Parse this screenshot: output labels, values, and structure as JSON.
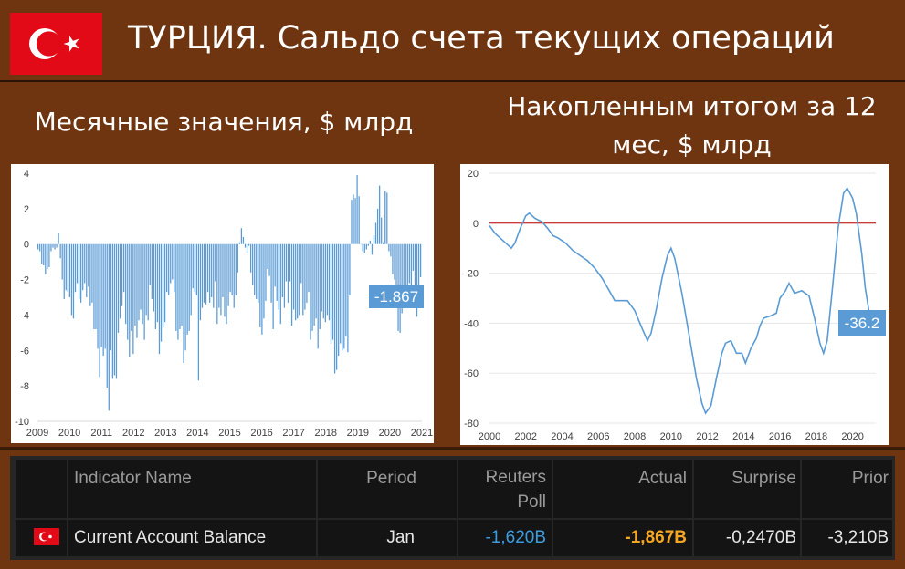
{
  "header": {
    "title": "ТУРЦИЯ. Сальдо счета текущих операций",
    "flag_icon": "turkey-flag-icon",
    "flag_color": "#e30a17"
  },
  "subtitles": {
    "left": "Месячные значения, $ млрд",
    "right_line1": "Накопленным итогом за 12",
    "right_line2": "мес, $ млрд"
  },
  "chart_data": [
    {
      "type": "bar",
      "ylim": [
        -10,
        4
      ],
      "y_ticks": [
        "4",
        "2",
        "0",
        "-2",
        "-4",
        "-6",
        "-8",
        "-10"
      ],
      "x_tick_labels": [
        "2009",
        "2010",
        "2011",
        "2012",
        "2013",
        "2014",
        "2015",
        "2016",
        "2017",
        "2018",
        "2019",
        "2020",
        "2021"
      ],
      "x_start": 2009,
      "x_end": 2021,
      "bar_color": "#5b9bd5",
      "annotation": "-1.867",
      "values": [
        -0.3,
        -0.4,
        -1.1,
        -1.2,
        -1.7,
        -1.4,
        -1.3,
        -0.4,
        -0.2,
        -0.3,
        -0.2,
        0.6,
        -0.8,
        -2.0,
        -3.1,
        -2.6,
        -2.7,
        -3.0,
        -4.0,
        -4.2,
        -2.7,
        -2.2,
        -3.1,
        -3.3,
        -2.6,
        -2.2,
        -3.0,
        -2.4,
        -3.5,
        -3.3,
        -4.8,
        -4.8,
        -5.9,
        -7.5,
        -5.8,
        -6.3,
        -5.9,
        -8.1,
        -9.4,
        -6.0,
        -7.6,
        -7.4,
        -7.6,
        -5.0,
        -4.2,
        -3.5,
        -2.7,
        -4.5,
        -5.4,
        -6.4,
        -4.9,
        -6.2,
        -4.6,
        -5.3,
        -4.3,
        -3.7,
        -4.5,
        -5.4,
        -4.0,
        -4.3,
        -2.3,
        -3.1,
        -3.8,
        -4.8,
        -4.4,
        -6.2,
        -5.5,
        -4.7,
        -4.4,
        -2.7,
        -2.9,
        -2.2,
        -2.0,
        -2.7,
        -4.9,
        -5.4,
        -4.8,
        -4.6,
        -6.7,
        -6.0,
        -5.1,
        -4.9,
        -4.0,
        -2.5,
        -2.7,
        -2.9,
        -7.7,
        -4.3,
        -3.6,
        -3.3,
        -3.4,
        -2.7,
        -3.3,
        -3.0,
        -3.6,
        -2.1,
        -4.5,
        -3.6,
        -4.0,
        -3.0,
        -4.1,
        -4.5,
        -3.5,
        -2.7,
        -2.9,
        -3.6,
        -2.9,
        -1.6,
        0.1,
        0.9,
        0.4,
        -0.2,
        -0.5,
        -0.1,
        -1.6,
        -2.3,
        -2.9,
        -3.1,
        -3.3,
        -4.7,
        -5.1,
        -4.2,
        -3.2,
        -1.4,
        -1.8,
        -3.3,
        -4.8,
        -2.4,
        -3.2,
        -3.7,
        -4.5,
        -3.0,
        -3.6,
        -2.1,
        -3.3,
        -2.1,
        -4.6,
        -3.7,
        -4.3,
        -4.2,
        -4.0,
        -2.2,
        -4.0,
        -3.7,
        -3.3,
        -2.7,
        -5.4,
        -4.9,
        -4.6,
        -4.2,
        -5.9,
        -4.8,
        -3.8,
        -4.2,
        -4.4,
        -4.0,
        -4.3,
        -5.6,
        -5.4,
        -7.3,
        -7.1,
        -6.3,
        -5.6,
        -6.0,
        -5.9,
        -5.2,
        -6.1,
        -2.9,
        2.5,
        2.8,
        2.6,
        3.9,
        2.7,
        0.0,
        -0.4,
        -0.5,
        -0.3,
        -0.1,
        0.2,
        -0.6,
        0.5,
        1.2,
        2.0,
        3.3,
        1.5,
        0.1,
        3.0,
        2.9,
        -0.4,
        -0.7,
        -1.7,
        -2.0,
        -2.6,
        -4.9,
        -5.0,
        -3.9,
        -2.6,
        -2.7,
        -2.4,
        -2.2,
        -3.4,
        -1.5,
        -2.3,
        -4.1,
        -3.2,
        -1.867
      ]
    },
    {
      "type": "line",
      "ylim": [
        -80,
        20
      ],
      "y_ticks": [
        "20",
        "0",
        "-20",
        "-40",
        "-60",
        "-80"
      ],
      "x_tick_labels": [
        "2000",
        "2002",
        "2004",
        "2006",
        "2008",
        "2010",
        "2012",
        "2014",
        "2016",
        "2018",
        "2020"
      ],
      "x_start": 2000,
      "x_end": 2020,
      "line_color": "#5b9bd5",
      "zero_line_color": "#c00000",
      "annotation": "-36.2",
      "points": [
        [
          2000.0,
          -1
        ],
        [
          2000.3,
          -4
        ],
        [
          2000.6,
          -6
        ],
        [
          2000.9,
          -8
        ],
        [
          2001.2,
          -10
        ],
        [
          2001.4,
          -8
        ],
        [
          2001.7,
          -2
        ],
        [
          2002.0,
          3
        ],
        [
          2002.2,
          4
        ],
        [
          2002.5,
          2
        ],
        [
          2002.9,
          0.5
        ],
        [
          2003.2,
          -2
        ],
        [
          2003.5,
          -5
        ],
        [
          2003.8,
          -6
        ],
        [
          2004.2,
          -8
        ],
        [
          2004.6,
          -11
        ],
        [
          2005.0,
          -13
        ],
        [
          2005.4,
          -15
        ],
        [
          2005.8,
          -18
        ],
        [
          2006.2,
          -22
        ],
        [
          2006.6,
          -27
        ],
        [
          2006.9,
          -31
        ],
        [
          2007.2,
          -31
        ],
        [
          2007.6,
          -31
        ],
        [
          2008.0,
          -35
        ],
        [
          2008.4,
          -42
        ],
        [
          2008.7,
          -47
        ],
        [
          2008.9,
          -44
        ],
        [
          2009.2,
          -34
        ],
        [
          2009.5,
          -22
        ],
        [
          2009.8,
          -13
        ],
        [
          2010.0,
          -10
        ],
        [
          2010.2,
          -14
        ],
        [
          2010.6,
          -28
        ],
        [
          2011.0,
          -45
        ],
        [
          2011.4,
          -62
        ],
        [
          2011.7,
          -72
        ],
        [
          2011.9,
          -76
        ],
        [
          2012.2,
          -73
        ],
        [
          2012.5,
          -62
        ],
        [
          2012.8,
          -52
        ],
        [
          2013.0,
          -48
        ],
        [
          2013.3,
          -47
        ],
        [
          2013.6,
          -52
        ],
        [
          2013.9,
          -52
        ],
        [
          2014.1,
          -56
        ],
        [
          2014.4,
          -50
        ],
        [
          2014.7,
          -46
        ],
        [
          2014.9,
          -41
        ],
        [
          2015.1,
          -38
        ],
        [
          2015.5,
          -37
        ],
        [
          2015.8,
          -36
        ],
        [
          2016.0,
          -30
        ],
        [
          2016.3,
          -27
        ],
        [
          2016.5,
          -24
        ],
        [
          2016.8,
          -28
        ],
        [
          2017.2,
          -27
        ],
        [
          2017.6,
          -29
        ],
        [
          2017.9,
          -38
        ],
        [
          2018.2,
          -48
        ],
        [
          2018.4,
          -52
        ],
        [
          2018.6,
          -47
        ],
        [
          2018.9,
          -25
        ],
        [
          2019.2,
          -2
        ],
        [
          2019.5,
          12
        ],
        [
          2019.7,
          14
        ],
        [
          2020.0,
          10
        ],
        [
          2020.2,
          4
        ],
        [
          2020.5,
          -12
        ],
        [
          2020.7,
          -26
        ],
        [
          2020.9,
          -35
        ],
        [
          2021.0,
          -36.2
        ]
      ]
    }
  ],
  "table": {
    "headers": {
      "indicator": "Indicator Name",
      "period": "Period",
      "reuters_line1": "Reuters",
      "reuters_line2": "Poll",
      "actual": "Actual",
      "surprise": "Surprise",
      "prior": "Prior"
    },
    "row": {
      "flag_icon": "turkey-flag-icon",
      "indicator": "Current Account Balance",
      "period": "Jan",
      "reuters": "-1,620B",
      "actual": "-1,867B",
      "surprise": "-0,2470B",
      "prior": "-3,210B"
    },
    "colors": {
      "reuters": "#3b9de0",
      "actual": "#f5a623"
    }
  }
}
